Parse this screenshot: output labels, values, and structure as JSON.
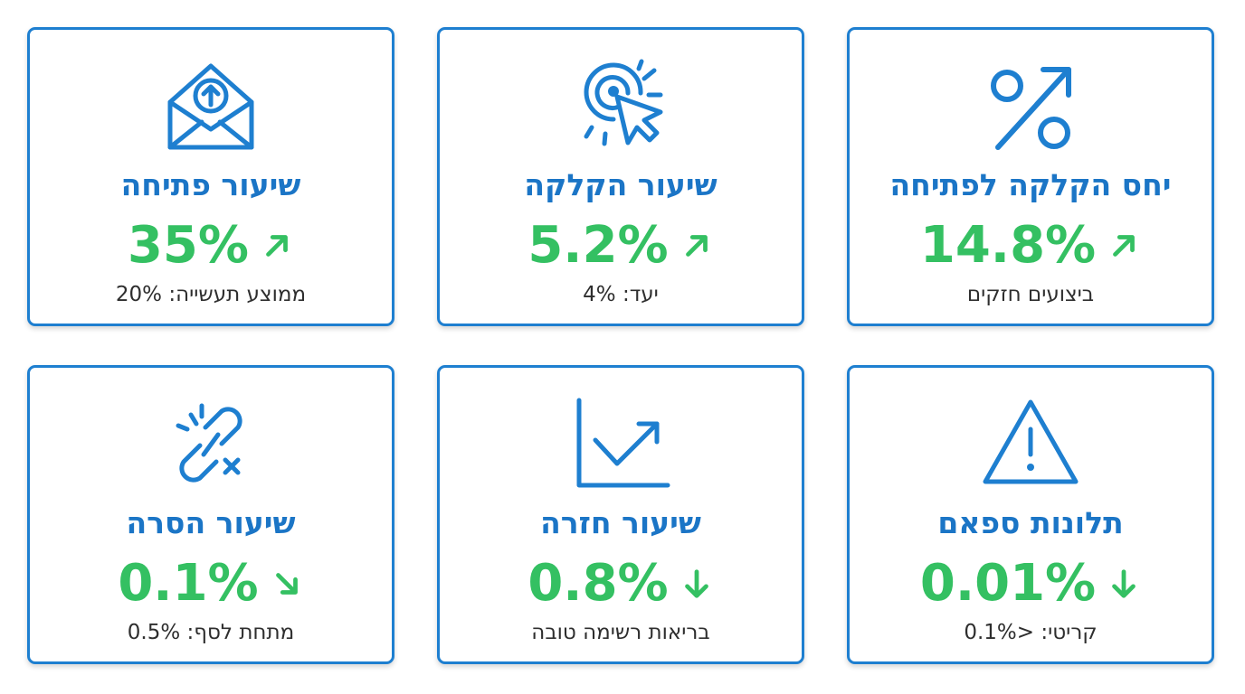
{
  "colors": {
    "border": "#1e7fd0",
    "title": "#1b75c6",
    "value": "#34c062",
    "subtitle": "#2e2e2e"
  },
  "cards": [
    {
      "icon": "open-envelope-upload-icon",
      "title": "שיעור פתיחה",
      "value": "35%",
      "trend": "up",
      "subtitle": "ממוצע תעשייה: 20%"
    },
    {
      "icon": "click-cursor-icon",
      "title": "שיעור הקלקה",
      "value": "5.2%",
      "trend": "up",
      "subtitle": "יעד: 4%"
    },
    {
      "icon": "percent-arrow-icon",
      "title": "יחס הקלקה לפתיחה",
      "value": "14.8%",
      "trend": "up",
      "subtitle": "ביצועים חזקים"
    },
    {
      "icon": "broken-link-icon",
      "title": "שיעור הסרה",
      "value": "0.1%",
      "trend": "down-right",
      "subtitle": "מתחת לסף: 0.5%"
    },
    {
      "icon": "trend-chart-icon",
      "title": "שיעור חזרה",
      "value": "0.8%",
      "trend": "down",
      "subtitle": "בריאות רשימה טובה"
    },
    {
      "icon": "warning-triangle-icon",
      "title": "תלונות ספאם",
      "value": "0.01%",
      "trend": "down",
      "subtitle": "קריטי: <0.1%"
    }
  ]
}
